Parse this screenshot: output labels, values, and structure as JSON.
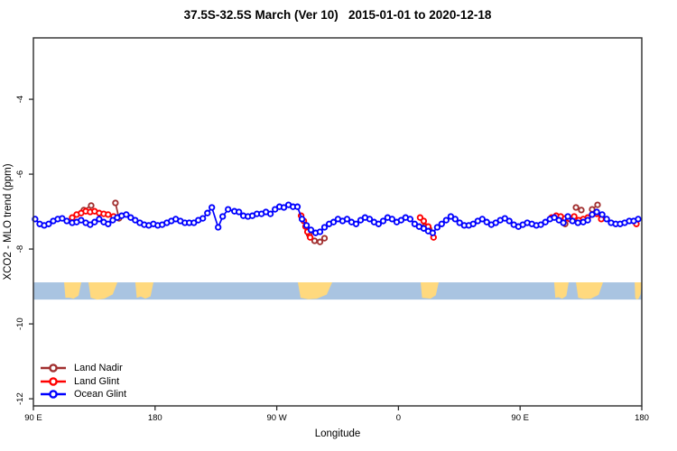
{
  "title": "37.5S-32.5S March (Ver 10)   2015-01-01 to 2020-12-18",
  "axes": {
    "x_label": "Longitude",
    "y_label": "XCO2 - MLO trend (ppm)",
    "x_ticks": [
      {
        "pos_deg": 0,
        "label": "90 E"
      },
      {
        "pos_deg": 90,
        "label": "180"
      },
      {
        "pos_deg": 180,
        "label": "90 W"
      },
      {
        "pos_deg": 270,
        "label": "0"
      },
      {
        "pos_deg": 360,
        "label": "90 E"
      },
      {
        "pos_deg": 450,
        "label": "180"
      }
    ],
    "y_ticks": [
      {
        "value": -4,
        "label": "-4"
      },
      {
        "value": -6,
        "label": "-6"
      },
      {
        "value": -8,
        "label": "-8"
      },
      {
        "value": -10,
        "label": "-10"
      },
      {
        "value": -12,
        "label": "-12"
      }
    ]
  },
  "legend": {
    "items": [
      {
        "label": "Land Nadir",
        "color": "#A13030"
      },
      {
        "label": "Land Glint",
        "color": "#FF0000"
      },
      {
        "label": "Ocean Glint",
        "color": "#0000FF"
      }
    ]
  },
  "chart_data": {
    "type": "line",
    "title": "37.5S-32.5S March (Ver 10)   2015-01-01 to 2020-12-18",
    "xlabel": "Longitude",
    "ylabel": "XCO2 - MLO trend (ppm)",
    "x_unit": "degrees east of 90E along wrapped longitude axis (90E > 180 > 90W > 0 > 90E > 180)",
    "xlim": [
      0,
      450
    ],
    "ylim": [
      -12.19,
      -2.36
    ],
    "grid": false,
    "legend_position": "bottom-left",
    "marker": "open-circle",
    "series": [
      {
        "name": "Land Nadir",
        "color": "#A13030",
        "segments": [
          [
            [
              37.3,
              -6.96
            ],
            [
              42.7,
              -6.84
            ]
          ],
          [
            [
              60.7,
              -6.77
            ],
            [
              63.3,
              -7.18
            ]
          ],
          [
            [
              204,
              -7.61
            ],
            [
              208,
              -7.78
            ],
            [
              212,
              -7.81
            ],
            [
              215.3,
              -7.71
            ]
          ],
          [
            [
              289.3,
              -7.4
            ],
            [
              292.7,
              -7.47
            ]
          ],
          [
            [
              393.3,
              -7.33
            ]
          ],
          [
            [
              401.3,
              -6.89
            ],
            [
              405.3,
              -6.96
            ]
          ],
          [
            [
              413.3,
              -6.94
            ],
            [
              417.3,
              -6.82
            ]
          ]
        ]
      },
      {
        "name": "Land Glint",
        "color": "#FF0000",
        "segments": [
          [
            [
              28.7,
              -7.16
            ],
            [
              32,
              -7.08
            ],
            [
              35.3,
              -7.04
            ],
            [
              38.7,
              -6.99
            ],
            [
              42,
              -7.01
            ],
            [
              45.3,
              -6.99
            ],
            [
              48.7,
              -7.04
            ],
            [
              52,
              -7.06
            ],
            [
              55.3,
              -7.08
            ],
            [
              59.3,
              -7.13
            ]
          ],
          [
            [
              198,
              -7.11
            ],
            [
              200,
              -7.25
            ],
            [
              201.3,
              -7.4
            ],
            [
              202.7,
              -7.54
            ],
            [
              204.7,
              -7.69
            ]
          ],
          [
            [
              286,
              -7.16
            ],
            [
              288.7,
              -7.25
            ],
            [
              292,
              -7.4
            ],
            [
              296,
              -7.69
            ]
          ],
          [
            [
              383.3,
              -7.16
            ],
            [
              386.7,
              -7.11
            ],
            [
              390,
              -7.13
            ],
            [
              393.3,
              -7.18
            ],
            [
              396.7,
              -7.2
            ],
            [
              400,
              -7.13
            ],
            [
              403.3,
              -7.23
            ],
            [
              406.7,
              -7.2
            ],
            [
              410,
              -7.16
            ],
            [
              413.3,
              -7.08
            ],
            [
              416.7,
              -7.06
            ],
            [
              420,
              -7.2
            ]
          ],
          [
            [
              446,
              -7.33
            ]
          ]
        ]
      },
      {
        "name": "Ocean Glint",
        "color": "#0000FF",
        "segments": [
          [
            [
              1.3,
              -7.2
            ],
            [
              4.7,
              -7.33
            ],
            [
              8,
              -7.37
            ],
            [
              11.3,
              -7.33
            ],
            [
              14.7,
              -7.25
            ],
            [
              18,
              -7.2
            ],
            [
              21.3,
              -7.18
            ],
            [
              24.7,
              -7.25
            ],
            [
              28.7,
              -7.3
            ],
            [
              32,
              -7.28
            ],
            [
              35.3,
              -7.23
            ],
            [
              38.7,
              -7.3
            ],
            [
              42,
              -7.35
            ],
            [
              45.3,
              -7.28
            ],
            [
              48.7,
              -7.2
            ],
            [
              52,
              -7.28
            ],
            [
              55.3,
              -7.33
            ],
            [
              58.7,
              -7.23
            ],
            [
              62,
              -7.16
            ],
            [
              65.3,
              -7.11
            ],
            [
              68.7,
              -7.08
            ],
            [
              72,
              -7.16
            ],
            [
              75.3,
              -7.23
            ],
            [
              78.7,
              -7.3
            ],
            [
              82,
              -7.35
            ],
            [
              85.3,
              -7.37
            ],
            [
              88.7,
              -7.33
            ],
            [
              92,
              -7.37
            ],
            [
              95.3,
              -7.35
            ],
            [
              98.7,
              -7.3
            ],
            [
              102,
              -7.25
            ],
            [
              105.3,
              -7.2
            ],
            [
              108.7,
              -7.25
            ],
            [
              112,
              -7.3
            ],
            [
              115.3,
              -7.3
            ],
            [
              118.7,
              -7.3
            ],
            [
              122,
              -7.23
            ],
            [
              125.3,
              -7.18
            ],
            [
              128.7,
              -7.04
            ],
            [
              132,
              -6.89
            ],
            [
              136.7,
              -7.42
            ],
            [
              140,
              -7.13
            ],
            [
              144,
              -6.94
            ],
            [
              148.7,
              -6.99
            ],
            [
              152,
              -7.01
            ],
            [
              155.3,
              -7.11
            ],
            [
              158.7,
              -7.13
            ],
            [
              162,
              -7.11
            ],
            [
              165.3,
              -7.06
            ],
            [
              168.7,
              -7.06
            ],
            [
              172,
              -7.01
            ],
            [
              175.3,
              -7.06
            ],
            [
              178.7,
              -6.94
            ],
            [
              182,
              -6.87
            ],
            [
              185.3,
              -6.89
            ],
            [
              188.7,
              -6.82
            ],
            [
              192,
              -6.87
            ],
            [
              195.3,
              -6.87
            ],
            [
              198.7,
              -7.2
            ],
            [
              202,
              -7.37
            ],
            [
              205.3,
              -7.49
            ],
            [
              208.7,
              -7.57
            ],
            [
              212,
              -7.54
            ],
            [
              215.3,
              -7.42
            ],
            [
              218.7,
              -7.33
            ],
            [
              222,
              -7.28
            ],
            [
              225.3,
              -7.2
            ],
            [
              228.7,
              -7.25
            ],
            [
              232,
              -7.2
            ],
            [
              235.3,
              -7.28
            ],
            [
              238.7,
              -7.33
            ],
            [
              242,
              -7.23
            ],
            [
              245.3,
              -7.16
            ],
            [
              248.7,
              -7.2
            ],
            [
              252,
              -7.28
            ],
            [
              255.3,
              -7.33
            ],
            [
              258.7,
              -7.25
            ],
            [
              262,
              -7.16
            ],
            [
              265.3,
              -7.2
            ],
            [
              268.7,
              -7.28
            ],
            [
              272,
              -7.23
            ],
            [
              275.3,
              -7.16
            ],
            [
              278.7,
              -7.2
            ],
            [
              282,
              -7.33
            ],
            [
              285.3,
              -7.4
            ],
            [
              288.7,
              -7.45
            ],
            [
              292,
              -7.52
            ],
            [
              295.3,
              -7.57
            ],
            [
              298.7,
              -7.42
            ],
            [
              302,
              -7.33
            ],
            [
              305.3,
              -7.23
            ],
            [
              308.7,
              -7.13
            ],
            [
              312,
              -7.2
            ],
            [
              315.3,
              -7.3
            ],
            [
              318.7,
              -7.37
            ],
            [
              322,
              -7.37
            ],
            [
              325.3,
              -7.33
            ],
            [
              328.7,
              -7.25
            ],
            [
              332,
              -7.2
            ],
            [
              335.3,
              -7.28
            ],
            [
              338.7,
              -7.35
            ],
            [
              342,
              -7.3
            ],
            [
              345.3,
              -7.23
            ],
            [
              348.7,
              -7.18
            ],
            [
              352,
              -7.25
            ],
            [
              355.3,
              -7.35
            ],
            [
              358.7,
              -7.4
            ],
            [
              362,
              -7.35
            ],
            [
              365.3,
              -7.3
            ],
            [
              368.7,
              -7.33
            ],
            [
              372,
              -7.37
            ],
            [
              375.3,
              -7.35
            ],
            [
              378.7,
              -7.28
            ],
            [
              382,
              -7.2
            ],
            [
              385.3,
              -7.16
            ],
            [
              388.7,
              -7.23
            ],
            [
              392,
              -7.3
            ],
            [
              395.3,
              -7.13
            ],
            [
              398.7,
              -7.25
            ],
            [
              402.7,
              -7.3
            ],
            [
              406.7,
              -7.28
            ],
            [
              410,
              -7.23
            ],
            [
              413.3,
              -7.08
            ],
            [
              416.7,
              -7.01
            ],
            [
              420.7,
              -7.08
            ],
            [
              424,
              -7.2
            ],
            [
              427.3,
              -7.3
            ],
            [
              430.7,
              -7.33
            ],
            [
              434,
              -7.33
            ],
            [
              437.3,
              -7.3
            ],
            [
              440.7,
              -7.25
            ],
            [
              444,
              -7.25
            ],
            [
              447.3,
              -7.2
            ]
          ]
        ]
      }
    ],
    "map_band": {
      "description": "land/ocean strip for latitude band",
      "y_range_ppm": [
        -9.35,
        -8.89
      ],
      "ocean_color": "#A9C4E1",
      "land_color": "#FFD97E",
      "land_segments_deg": [
        [
          22.7,
          35.4
        ],
        [
          40.7,
          62.1
        ],
        [
          75.4,
          88.8
        ],
        [
          195.6,
          221.0
        ],
        [
          286.4,
          299.8
        ],
        [
          385.2,
          395.9
        ],
        [
          401.3,
          421.3
        ],
        [
          444.7,
          450.0
        ]
      ]
    }
  }
}
